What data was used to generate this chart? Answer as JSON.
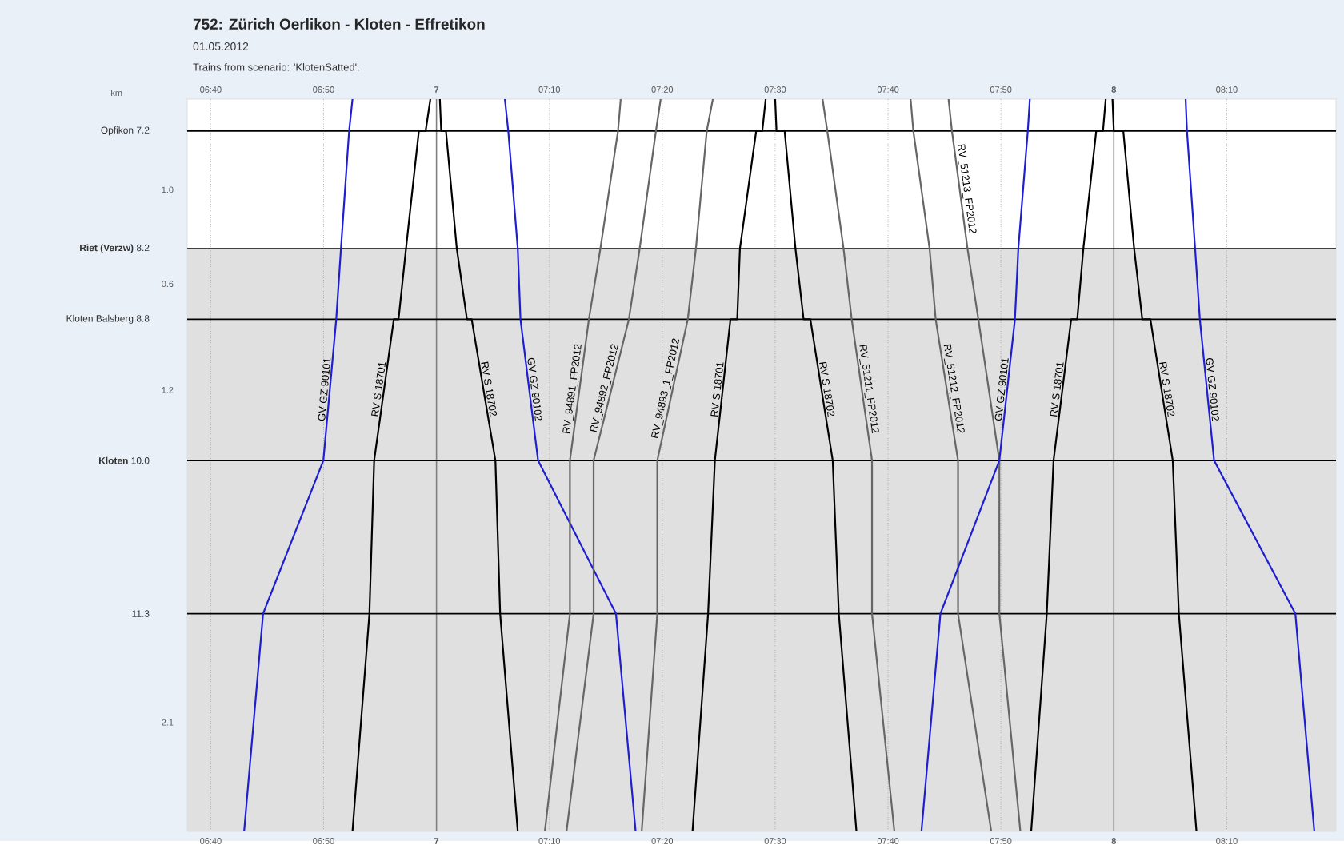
{
  "chart_data": {
    "type": "line",
    "title": "752: Zürich Oerlikon - Kloten - Effretikon",
    "subtitle": "01.05.2012",
    "ylabel": "km",
    "annotations": [
      "Trains from scenario: 'KlotenSatted'.",
      "1.0",
      "0.6",
      "1.2",
      "2.1"
    ],
    "xlim": [
      6.632,
      8.328
    ],
    "ylim": [
      13.15,
      6.93
    ],
    "xticks": [
      {
        "value": 6.6667,
        "label": "06:40"
      },
      {
        "value": 6.8333,
        "label": "06:50"
      },
      {
        "value": 7,
        "label": "7"
      },
      {
        "value": 7.1667,
        "label": "07:10"
      },
      {
        "value": 7.3333,
        "label": "07:20"
      },
      {
        "value": 7.5,
        "label": "07:30"
      },
      {
        "value": 7.6667,
        "label": "07:40"
      },
      {
        "value": 7.8333,
        "label": "07:50"
      },
      {
        "value": 8,
        "label": "8"
      },
      {
        "value": 8.1667,
        "label": "08:10"
      }
    ],
    "x2lim": [
      6.632,
      8.328
    ],
    "x2ticks": [
      {
        "value": 6.6667,
        "label": "06:40"
      },
      {
        "value": 6.8333,
        "label": "06:50"
      },
      {
        "value": 7,
        "label": "7"
      },
      {
        "value": 7.1667,
        "label": "07:10"
      },
      {
        "value": 7.3333,
        "label": "07:20"
      },
      {
        "value": 7.5,
        "label": "07:30"
      },
      {
        "value": 7.6667,
        "label": "07:40"
      },
      {
        "value": 7.8333,
        "label": "07:50"
      },
      {
        "value": 8,
        "label": "8"
      },
      {
        "value": 8.1667,
        "label": "08:10"
      }
    ],
    "yticks": [
      {
        "value": 7.2,
        "label": "Opfikon  7.2"
      },
      {
        "value": 8.2,
        "label": "**Riet (Verzw)**  8.2"
      },
      {
        "value": 8.8,
        "label": "Kloten Balsberg  8.8"
      },
      {
        "value": 10.0,
        "label": "**Kloten**  10.0"
      },
      {
        "value": 11.3,
        "label": "11.3"
      }
    ],
    "grid": true,
    "bands": [
      {
        "axis": "y",
        "from": 8.2,
        "to": 13.15,
        "color": "#e0e0e0"
      }
    ],
    "series": [
      {
        "name": "GV GZ 90101",
        "color": "#1e1ed2",
        "x": [
          6.716,
          6.744,
          6.833,
          6.852,
          6.859,
          6.871,
          6.876
        ],
        "values": [
          13.15,
          11.3,
          10.0,
          8.8,
          8.2,
          7.2,
          6.93
        ]
      },
      {
        "name": "RV S 18701",
        "color": "#000000",
        "x": [
          6.876,
          6.901,
          6.908,
          6.937,
          6.944,
          6.955,
          6.974,
          6.984,
          6.991
        ],
        "values": [
          13.15,
          11.3,
          10.0,
          8.8,
          8.8,
          8.2,
          7.2,
          7.2,
          6.93
        ]
      },
      {
        "name": "RV S 18702",
        "color": "#000000",
        "x": [
          7.005,
          7.007,
          7.014,
          7.03,
          7.045,
          7.052,
          7.087,
          7.094,
          7.12
        ],
        "values": [
          6.93,
          7.2,
          7.2,
          8.2,
          8.8,
          8.8,
          10.0,
          11.3,
          13.15
        ]
      },
      {
        "name": "GV GZ 90102",
        "color": "#1e1ed2",
        "x": [
          7.101,
          7.106,
          7.12,
          7.124,
          7.15,
          7.265,
          7.294
        ],
        "values": [
          6.93,
          7.2,
          8.2,
          8.8,
          10.0,
          11.3,
          13.15
        ]
      },
      {
        "name": "RV_94891_FP2012",
        "color": "#666666",
        "x": [
          7.16,
          7.197,
          7.197,
          7.225,
          7.242,
          7.268,
          7.272
        ],
        "values": [
          13.15,
          11.3,
          10.0,
          8.8,
          8.2,
          7.2,
          6.93
        ]
      },
      {
        "name": "RV_94892_FP2012",
        "color": "#666666",
        "x": [
          7.192,
          7.232,
          7.232,
          7.284,
          7.3,
          7.324,
          7.331
        ],
        "values": [
          13.15,
          11.3,
          10.0,
          8.8,
          8.2,
          7.2,
          6.93
        ]
      },
      {
        "name": "RV_94893_1_FP2012",
        "color": "#666666",
        "x": [
          7.303,
          7.326,
          7.326,
          7.371,
          7.383,
          7.399,
          7.408
        ],
        "values": [
          13.15,
          11.3,
          10.0,
          8.8,
          8.2,
          7.2,
          6.93
        ]
      },
      {
        "name": "RV S 18701",
        "color": "#000000",
        "x": [
          7.378,
          7.401,
          7.411,
          7.434,
          7.444,
          7.448,
          7.472,
          7.481,
          7.486
        ],
        "values": [
          13.15,
          11.3,
          10.0,
          8.8,
          8.8,
          8.2,
          7.2,
          7.2,
          6.93
        ]
      },
      {
        "name": "RV S 18702",
        "color": "#000000",
        "x": [
          7.5,
          7.502,
          7.514,
          7.53,
          7.542,
          7.552,
          7.585,
          7.594,
          7.62
        ],
        "values": [
          6.93,
          7.2,
          7.2,
          8.2,
          8.8,
          8.8,
          10.0,
          11.3,
          13.15
        ]
      },
      {
        "name": "RV_51211_FP2012",
        "color": "#666666",
        "x": [
          7.57,
          7.577,
          7.601,
          7.613,
          7.643,
          7.643,
          7.676
        ],
        "values": [
          6.93,
          7.2,
          8.2,
          8.8,
          10.0,
          11.3,
          13.15
        ]
      },
      {
        "name": "RV_51212_FP2012",
        "color": "#666666",
        "x": [
          7.7,
          7.704,
          7.728,
          7.737,
          7.77,
          7.77,
          7.819
        ],
        "values": [
          6.93,
          7.2,
          8.2,
          8.8,
          10.0,
          11.3,
          13.15
        ]
      },
      {
        "name": "RV_51213_FP2012",
        "color": "#666666",
        "x": [
          7.756,
          7.761,
          7.784,
          7.8,
          7.831,
          7.831,
          7.862
        ],
        "values": [
          6.93,
          7.2,
          8.2,
          8.8,
          10.0,
          11.3,
          13.15
        ]
      },
      {
        "name": "GV GZ 90101",
        "color": "#1e1ed2",
        "x": [
          7.716,
          7.744,
          7.831,
          7.854,
          7.859,
          7.873,
          7.876
        ],
        "values": [
          13.15,
          11.3,
          10.0,
          8.8,
          8.2,
          7.2,
          6.93
        ]
      },
      {
        "name": "RV S 18701",
        "color": "#000000",
        "x": [
          7.878,
          7.901,
          7.911,
          7.937,
          7.946,
          7.955,
          7.974,
          7.984,
          7.988
        ],
        "values": [
          13.15,
          11.3,
          10.0,
          8.8,
          8.8,
          8.2,
          7.2,
          7.2,
          6.93
        ]
      },
      {
        "name": "RV S 18702",
        "color": "#000000",
        "x": [
          7.998,
          8.0,
          8.014,
          8.03,
          8.042,
          8.054,
          8.087,
          8.096,
          8.122
        ],
        "values": [
          6.93,
          7.2,
          7.2,
          8.2,
          8.8,
          8.8,
          10.0,
          11.3,
          13.15
        ]
      },
      {
        "name": "GV GZ 90102",
        "color": "#1e1ed2",
        "x": [
          8.106,
          8.108,
          8.12,
          8.127,
          8.148,
          8.268,
          8.296
        ],
        "values": [
          6.93,
          7.2,
          8.2,
          8.8,
          10.0,
          11.3,
          13.15
        ]
      }
    ]
  }
}
